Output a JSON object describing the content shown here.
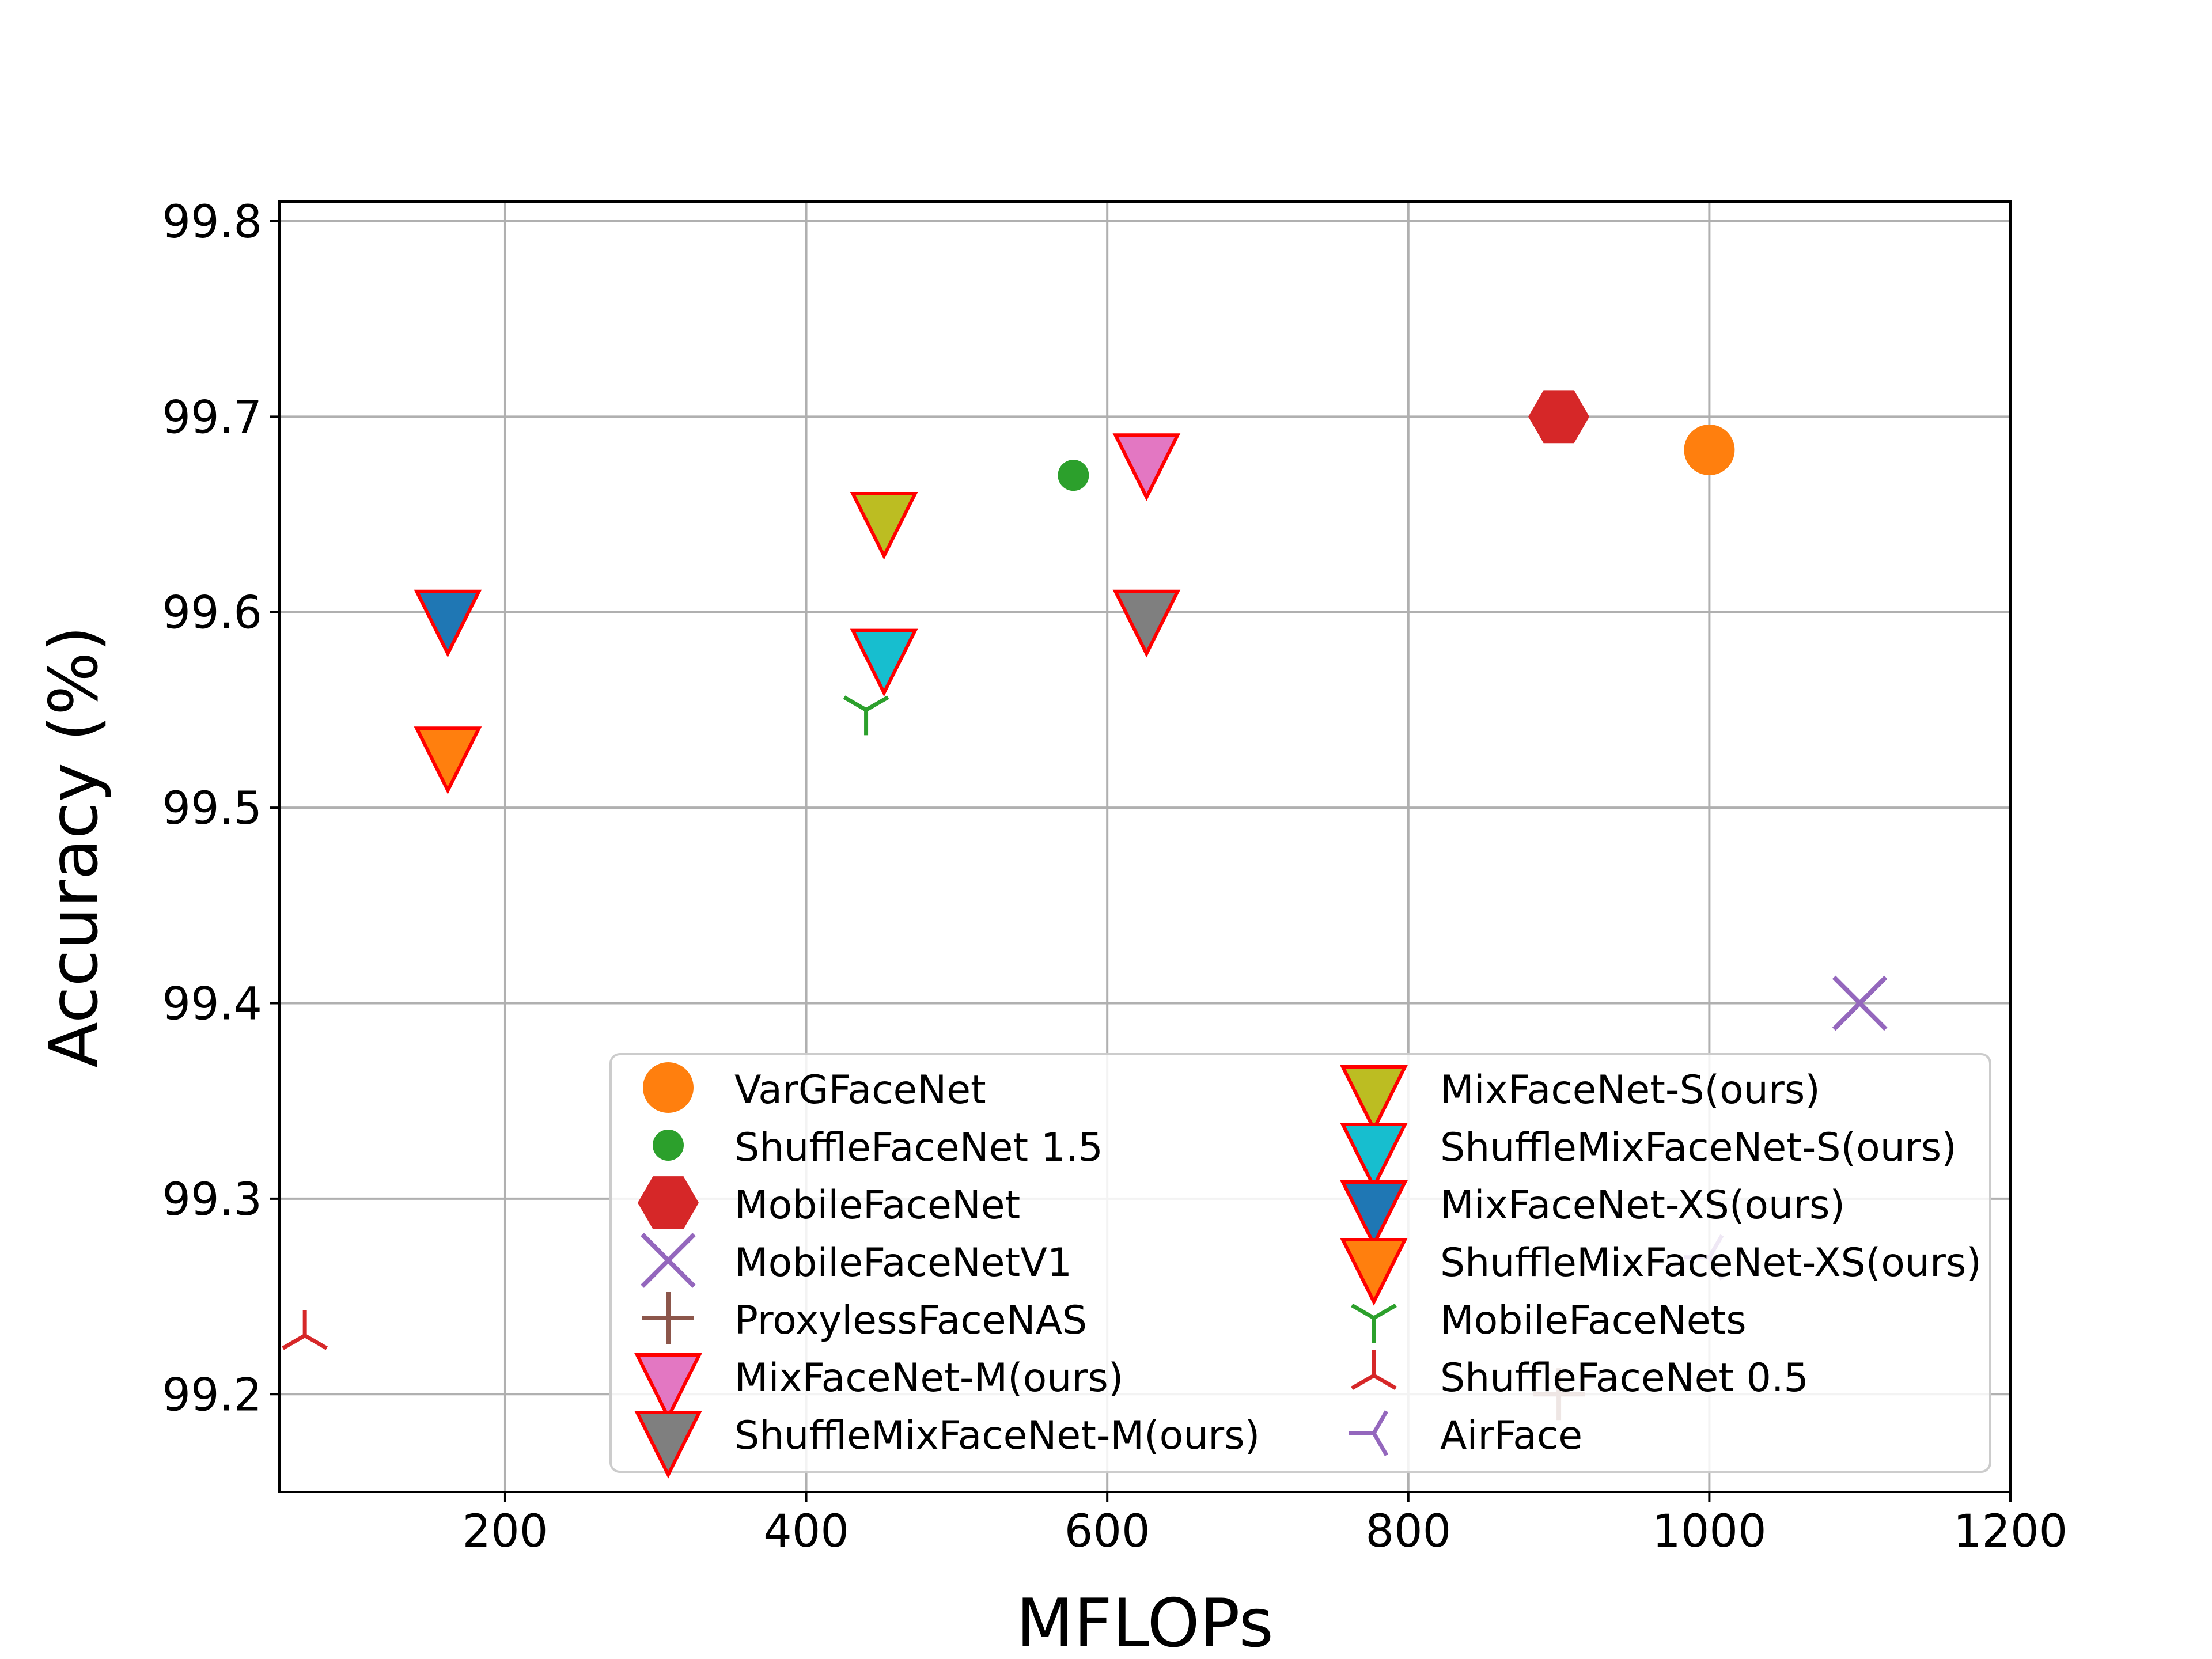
{
  "chart_data": {
    "type": "scatter",
    "xlabel": "MFLOPs",
    "ylabel": "Accuracy (%)",
    "xlim": [
      50,
      1200
    ],
    "ylim": [
      99.15,
      99.81
    ],
    "xticks": [
      200,
      400,
      600,
      800,
      1000,
      1200
    ],
    "yticks": [
      99.2,
      99.3,
      99.4,
      99.5,
      99.6,
      99.7,
      99.8
    ],
    "grid": true,
    "legend_position": "lower-right",
    "legend_columns": 2,
    "series": [
      {
        "name": "VarGFaceNet",
        "marker": "circle-large",
        "color": "#ff7f0e",
        "x": 1000,
        "y": 99.683
      },
      {
        "name": "ShuffleFaceNet 1.5",
        "marker": "circle-small",
        "color": "#2ca02c",
        "x": 577.5,
        "y": 99.67
      },
      {
        "name": "MobileFaceNet",
        "marker": "hexagon",
        "color": "#d62728",
        "x": 900,
        "y": 99.7
      },
      {
        "name": "MobileFaceNetV1",
        "marker": "x",
        "color": "#9467bd",
        "x": 1100,
        "y": 99.4
      },
      {
        "name": "ProxylessFaceNAS",
        "marker": "plus",
        "color": "#8c564b",
        "x": 900,
        "y": 99.2
      },
      {
        "name": "MixFaceNet-M(ours)",
        "marker": "triangle-down",
        "color": "#e377c2",
        "edge": "#ff0000",
        "x": 626.1,
        "y": 99.68
      },
      {
        "name": "ShuffleMixFaceNet-M(ours)",
        "marker": "triangle-down",
        "color": "#7f7f7f",
        "edge": "#ff0000",
        "x": 626.1,
        "y": 99.6
      },
      {
        "name": "MixFaceNet-S(ours)",
        "marker": "triangle-down",
        "color": "#bcbd22",
        "edge": "#ff0000",
        "x": 451.7,
        "y": 99.65
      },
      {
        "name": "ShuffleMixFaceNet-S(ours)",
        "marker": "triangle-down",
        "color": "#17becf",
        "edge": "#ff0000",
        "x": 451.7,
        "y": 99.58
      },
      {
        "name": "MixFaceNet-XS(ours)",
        "marker": "triangle-down",
        "color": "#1f77b4",
        "edge": "#ff0000",
        "x": 161.9,
        "y": 99.6
      },
      {
        "name": "ShuffleMixFaceNet-XS(ours)",
        "marker": "triangle-down",
        "color": "#ff7f0e",
        "edge": "#ff0000",
        "x": 161.9,
        "y": 99.53
      },
      {
        "name": "MobileFaceNets",
        "marker": "tri-down",
        "color": "#2ca02c",
        "x": 439.8,
        "y": 99.55
      },
      {
        "name": "ShuffleFaceNet 0.5",
        "marker": "tri-up",
        "color": "#d62728",
        "x": 66.9,
        "y": 99.23
      },
      {
        "name": "AirFace",
        "marker": "tri-left",
        "color": "#9467bd",
        "x": 1000,
        "y": 99.27
      }
    ]
  }
}
